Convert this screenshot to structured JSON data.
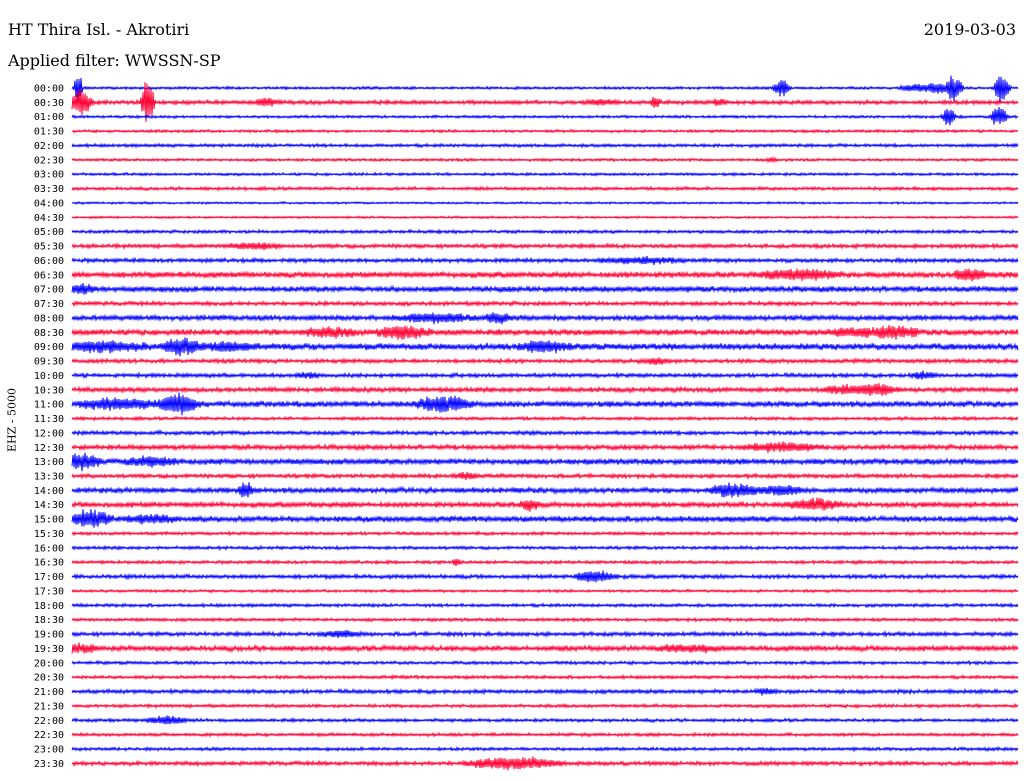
{
  "header": {
    "station": "HT Thira Isl. - Akrotiri",
    "filter": "Applied filter: WWSSN-SP",
    "date": "2019-03-03"
  },
  "channel_label": "EHZ - 5000",
  "colors": {
    "even_row": "#0000ff",
    "odd_row": "#ff0033"
  },
  "chart_data": {
    "type": "line",
    "title": "HT Thira Isl. - Akrotiri",
    "subtitle": "Applied filter: WWSSN-SP",
    "ylabel": "EHZ - 5000",
    "row_labels": [
      "00:00",
      "00:30",
      "01:00",
      "01:30",
      "02:00",
      "02:30",
      "03:00",
      "03:30",
      "04:00",
      "04:30",
      "05:00",
      "05:30",
      "06:00",
      "06:30",
      "07:00",
      "07:30",
      "08:00",
      "08:30",
      "09:00",
      "09:30",
      "10:00",
      "10:30",
      "11:00",
      "11:30",
      "12:00",
      "12:30",
      "13:00",
      "13:30",
      "14:00",
      "14:30",
      "15:00",
      "15:30",
      "16:00",
      "16:30",
      "17:00",
      "17:30",
      "18:00",
      "18:30",
      "19:00",
      "19:30",
      "20:00",
      "20:30",
      "21:00",
      "21:30",
      "22:00",
      "22:30",
      "23:00",
      "23:30"
    ],
    "series_colors": [
      "#0000ff",
      "#ff0033"
    ],
    "noise_levels": [
      1.0,
      1.5,
      1.0,
      1.0,
      1.2,
      1.0,
      1.0,
      1.2,
      0.8,
      0.8,
      1.2,
      1.5,
      1.5,
      2.2,
      2.2,
      1.5,
      2.0,
      2.2,
      2.5,
      1.5,
      1.5,
      1.8,
      2.2,
      1.2,
      1.5,
      1.8,
      2.2,
      1.5,
      2.0,
      2.0,
      2.2,
      1.2,
      1.2,
      1.2,
      1.5,
      1.0,
      1.2,
      1.2,
      1.5,
      2.0,
      1.2,
      1.2,
      1.5,
      1.2,
      1.2,
      1.2,
      1.2,
      1.5
    ],
    "events": [
      {
        "row": 0,
        "minute": 0.2,
        "amplitude": 16,
        "duration": 0.3
      },
      {
        "row": 0,
        "minute": 22.5,
        "amplitude": 9,
        "duration": 0.6
      },
      {
        "row": 0,
        "minute": 26.8,
        "amplitude": 4,
        "duration": 1.2
      },
      {
        "row": 0,
        "minute": 27.5,
        "amplitude": 5,
        "duration": 1.0
      },
      {
        "row": 0,
        "minute": 28.0,
        "amplitude": 14,
        "duration": 0.6
      },
      {
        "row": 0,
        "minute": 29.5,
        "amplitude": 16,
        "duration": 0.6
      },
      {
        "row": 1,
        "minute": 0.3,
        "amplitude": 14,
        "duration": 0.8
      },
      {
        "row": 1,
        "minute": 2.4,
        "amplitude": 24,
        "duration": 0.5
      },
      {
        "row": 1,
        "minute": 6.2,
        "amplitude": 4,
        "duration": 0.8
      },
      {
        "row": 1,
        "minute": 16.8,
        "amplitude": 3,
        "duration": 1.0
      },
      {
        "row": 1,
        "minute": 18.5,
        "amplitude": 5,
        "duration": 0.4
      },
      {
        "row": 1,
        "minute": 20.5,
        "amplitude": 4,
        "duration": 0.4
      },
      {
        "row": 2,
        "minute": 27.8,
        "amplitude": 10,
        "duration": 0.5
      },
      {
        "row": 2,
        "minute": 29.4,
        "amplitude": 12,
        "duration": 0.6
      },
      {
        "row": 5,
        "minute": 22.2,
        "amplitude": 2,
        "duration": 0.4
      },
      {
        "row": 11,
        "minute": 5.8,
        "amplitude": 3,
        "duration": 2.0
      },
      {
        "row": 12,
        "minute": 18.0,
        "amplitude": 3,
        "duration": 3.0
      },
      {
        "row": 13,
        "minute": 23.0,
        "amplitude": 5,
        "duration": 3.0
      },
      {
        "row": 13,
        "minute": 28.5,
        "amplitude": 6,
        "duration": 1.2
      },
      {
        "row": 14,
        "minute": 0.3,
        "amplitude": 4,
        "duration": 1.0
      },
      {
        "row": 16,
        "minute": 11.5,
        "amplitude": 4,
        "duration": 3.0
      },
      {
        "row": 16,
        "minute": 13.5,
        "amplitude": 5,
        "duration": 1.0
      },
      {
        "row": 17,
        "minute": 8.2,
        "amplitude": 4,
        "duration": 2.0
      },
      {
        "row": 17,
        "minute": 10.5,
        "amplitude": 6,
        "duration": 2.0
      },
      {
        "row": 17,
        "minute": 25.0,
        "amplitude": 4,
        "duration": 2.5
      },
      {
        "row": 17,
        "minute": 26.2,
        "amplitude": 5,
        "duration": 1.5
      },
      {
        "row": 18,
        "minute": 1.0,
        "amplitude": 5,
        "duration": 3.0
      },
      {
        "row": 18,
        "minute": 3.5,
        "amplitude": 8,
        "duration": 1.5
      },
      {
        "row": 18,
        "minute": 5.0,
        "amplitude": 4,
        "duration": 2.0
      },
      {
        "row": 18,
        "minute": 15.0,
        "amplitude": 5,
        "duration": 2.0
      },
      {
        "row": 19,
        "minute": 18.5,
        "amplitude": 3,
        "duration": 1.0
      },
      {
        "row": 20,
        "minute": 7.5,
        "amplitude": 2,
        "duration": 1.0
      },
      {
        "row": 20,
        "minute": 27.0,
        "amplitude": 3,
        "duration": 1.0
      },
      {
        "row": 21,
        "minute": 24.5,
        "amplitude": 4,
        "duration": 1.5
      },
      {
        "row": 21,
        "minute": 25.5,
        "amplitude": 6,
        "duration": 1.5
      },
      {
        "row": 22,
        "minute": 1.5,
        "amplitude": 5,
        "duration": 3.0
      },
      {
        "row": 22,
        "minute": 3.4,
        "amplitude": 10,
        "duration": 1.5
      },
      {
        "row": 22,
        "minute": 11.8,
        "amplitude": 8,
        "duration": 2.0
      },
      {
        "row": 25,
        "minute": 22.5,
        "amplitude": 4,
        "duration": 3.0
      },
      {
        "row": 26,
        "minute": 0.3,
        "amplitude": 8,
        "duration": 1.5
      },
      {
        "row": 26,
        "minute": 2.5,
        "amplitude": 4,
        "duration": 2.0
      },
      {
        "row": 27,
        "minute": 12.5,
        "amplitude": 3,
        "duration": 1.0
      },
      {
        "row": 28,
        "minute": 5.5,
        "amplitude": 9,
        "duration": 0.5
      },
      {
        "row": 28,
        "minute": 21.0,
        "amplitude": 6,
        "duration": 2.0
      },
      {
        "row": 28,
        "minute": 22.5,
        "amplitude": 5,
        "duration": 1.5
      },
      {
        "row": 29,
        "minute": 14.5,
        "amplitude": 5,
        "duration": 0.8
      },
      {
        "row": 29,
        "minute": 23.5,
        "amplitude": 5,
        "duration": 2.0
      },
      {
        "row": 30,
        "minute": 0.6,
        "amplitude": 9,
        "duration": 1.5
      },
      {
        "row": 30,
        "minute": 2.5,
        "amplitude": 4,
        "duration": 2.0
      },
      {
        "row": 33,
        "minute": 12.2,
        "amplitude": 4,
        "duration": 0.3
      },
      {
        "row": 34,
        "minute": 16.6,
        "amplitude": 6,
        "duration": 1.5
      },
      {
        "row": 38,
        "minute": 8.5,
        "amplitude": 3,
        "duration": 1.5
      },
      {
        "row": 39,
        "minute": 0.2,
        "amplitude": 4,
        "duration": 1.5
      },
      {
        "row": 39,
        "minute": 19.5,
        "amplitude": 3,
        "duration": 2.5
      },
      {
        "row": 42,
        "minute": 22.0,
        "amplitude": 3,
        "duration": 0.8
      },
      {
        "row": 44,
        "minute": 3.0,
        "amplitude": 4,
        "duration": 1.5
      },
      {
        "row": 47,
        "minute": 14.0,
        "amplitude": 6,
        "duration": 3.5
      }
    ]
  }
}
